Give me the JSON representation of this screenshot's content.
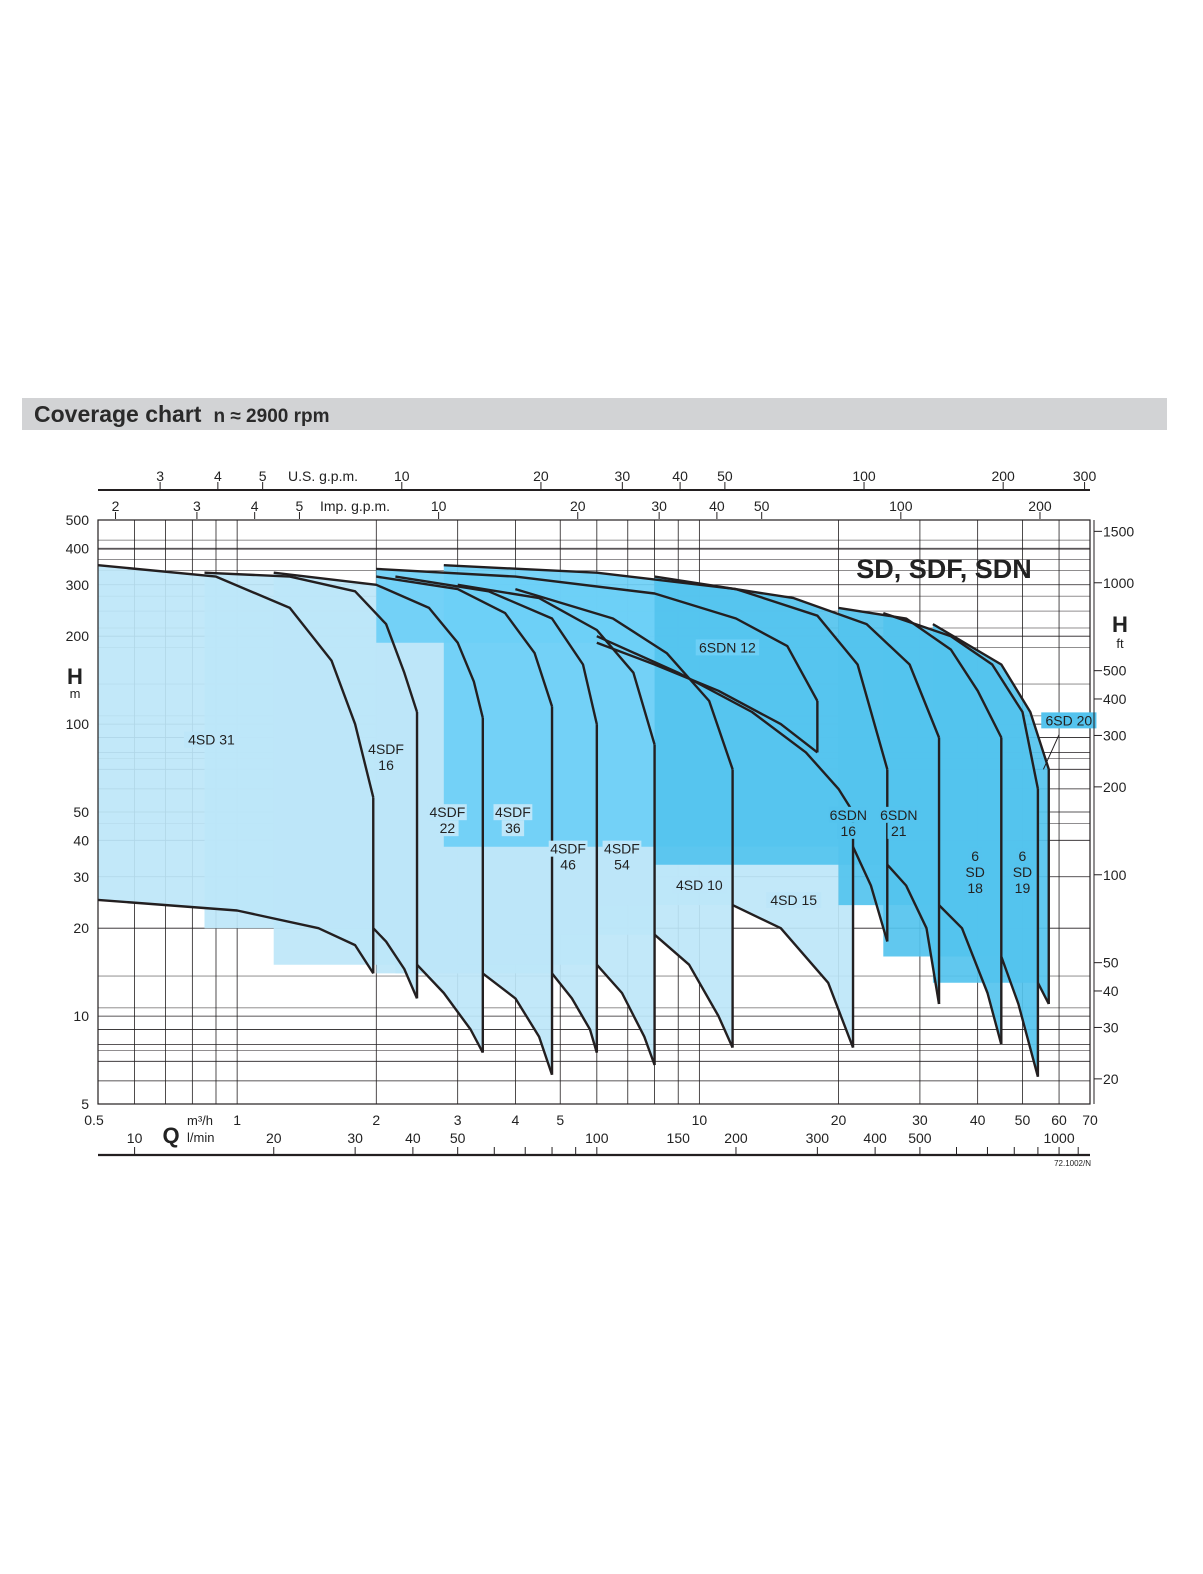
{
  "page": {
    "title": "Coverage chart",
    "subtitle": "n ≈ 2900 rpm"
  },
  "chart_data": {
    "type": "area",
    "title": "SD, SDF, SDN",
    "x_axis": {
      "symbol": "Q",
      "unit_primary": "m³/h",
      "unit_secondary": "l/min",
      "scale": "log",
      "range_m3h": [
        0.5,
        70
      ],
      "ticks_m3h": [
        "0.5",
        "1",
        "2",
        "3",
        "4",
        "5",
        "10",
        "20",
        "30",
        "40",
        "50",
        "60",
        "70"
      ],
      "ticks_lmin": [
        "10",
        "20",
        "30",
        "40",
        "50",
        "100",
        "150",
        "200",
        "300",
        "400",
        "500",
        "1000"
      ],
      "ticks_usgpm": [
        "3",
        "4",
        "5",
        "10",
        "20",
        "30",
        "40",
        "50",
        "100",
        "200",
        "300"
      ],
      "usgpm_label": "U.S. g.p.m.",
      "ticks_impgpm": [
        "2",
        "3",
        "4",
        "5",
        "10",
        "20",
        "30",
        "40",
        "50",
        "100",
        "200"
      ],
      "impgpm_label": "Imp. g.p.m."
    },
    "y_axis": {
      "symbol": "H",
      "unit_left": "m",
      "unit_right": "ft",
      "scale": "log",
      "range_m": [
        5,
        500
      ],
      "ticks_m": [
        "5",
        "10",
        "20",
        "30",
        "40",
        "50",
        "100",
        "200",
        "300",
        "400",
        "500"
      ],
      "ticks_ft": [
        "20",
        "30",
        "40",
        "50",
        "100",
        "200",
        "300",
        "400",
        "500",
        "1000",
        "1500"
      ]
    },
    "grid": true,
    "colors": {
      "sd_fill": "#bde6f9",
      "sdn_fill": "#6dcff6",
      "sd6_fill": "#54c3ee",
      "curve": "#231f20"
    },
    "series": [
      {
        "name": "4SD 31",
        "label_lines": [
          "4SD 31"
        ],
        "qmin": 0.5,
        "qmax": 1.97,
        "top": [
          [
            0.5,
            350
          ],
          [
            0.9,
            320
          ],
          [
            1.3,
            250
          ],
          [
            1.6,
            165
          ],
          [
            1.8,
            100
          ],
          [
            1.97,
            56
          ]
        ],
        "bottom": [
          [
            0.5,
            25
          ],
          [
            1.0,
            23
          ],
          [
            1.5,
            20
          ],
          [
            1.8,
            17.5
          ],
          [
            1.97,
            14
          ]
        ]
      },
      {
        "name": "4SDF 16",
        "label_lines": [
          "4SDF",
          "16"
        ],
        "qmin": 0.85,
        "qmax": 2.45,
        "top": [
          [
            0.85,
            330
          ],
          [
            1.3,
            320
          ],
          [
            1.8,
            285
          ],
          [
            2.1,
            220
          ],
          [
            2.3,
            150
          ],
          [
            2.45,
            110
          ]
        ],
        "bottom": [
          [
            1.97,
            20
          ],
          [
            2.1,
            18
          ],
          [
            2.3,
            14.5
          ],
          [
            2.45,
            11.5
          ]
        ]
      },
      {
        "name": "4SDF 22",
        "label_lines": [
          "4SDF",
          "22"
        ],
        "qmin": 2.45,
        "qmax": 3.4,
        "top": [
          [
            1.2,
            330
          ],
          [
            2.0,
            300
          ],
          [
            2.6,
            250
          ],
          [
            3.0,
            190
          ],
          [
            3.25,
            140
          ],
          [
            3.4,
            105
          ]
        ],
        "bottom": [
          [
            2.45,
            15
          ],
          [
            2.8,
            12
          ],
          [
            3.2,
            9
          ],
          [
            3.4,
            7.5
          ]
        ]
      },
      {
        "name": "4SDF 36",
        "label_lines": [
          "4SDF",
          "36"
        ],
        "qmin": 3.4,
        "qmax": 4.8,
        "top": [
          [
            2.0,
            320
          ],
          [
            3.0,
            290
          ],
          [
            3.8,
            240
          ],
          [
            4.4,
            175
          ],
          [
            4.8,
            115
          ]
        ],
        "bottom": [
          [
            3.4,
            14
          ],
          [
            4.0,
            11.5
          ],
          [
            4.5,
            8.5
          ],
          [
            4.8,
            6.3
          ]
        ]
      },
      {
        "name": "4SDF 46",
        "label_lines": [
          "4SDF",
          "46"
        ],
        "qmin": 4.8,
        "qmax": 6.0,
        "top": [
          [
            2.2,
            320
          ],
          [
            3.5,
            285
          ],
          [
            4.8,
            230
          ],
          [
            5.6,
            160
          ],
          [
            6.0,
            100
          ]
        ],
        "bottom": [
          [
            4.8,
            14
          ],
          [
            5.3,
            11.5
          ],
          [
            5.8,
            9
          ],
          [
            6.0,
            7.5
          ]
        ]
      },
      {
        "name": "4SDF 54",
        "label_lines": [
          "4SDF",
          "54"
        ],
        "qmin": 6.0,
        "qmax": 8.0,
        "top": [
          [
            3.0,
            300
          ],
          [
            4.5,
            270
          ],
          [
            6.0,
            210
          ],
          [
            7.2,
            150
          ],
          [
            8.0,
            85
          ]
        ],
        "bottom": [
          [
            6.0,
            15
          ],
          [
            6.8,
            12
          ],
          [
            7.6,
            8.5
          ],
          [
            8.0,
            6.8
          ]
        ]
      },
      {
        "name": "4SD 10",
        "label_lines": [
          "4SD 10"
        ],
        "qmin": 8.0,
        "qmax": 11.8,
        "top": [
          [
            4.0,
            290
          ],
          [
            6.5,
            230
          ],
          [
            8.5,
            175
          ],
          [
            10.5,
            120
          ],
          [
            11.8,
            70
          ]
        ],
        "bottom": [
          [
            8.0,
            19
          ],
          [
            9.5,
            15
          ],
          [
            11.0,
            10
          ],
          [
            11.8,
            7.8
          ]
        ]
      },
      {
        "name": "4SD 15",
        "label_lines": [
          "4SD 15"
        ],
        "qmin": 11.8,
        "qmax": 21.5,
        "top": [
          [
            6.0,
            200
          ],
          [
            9.0,
            150
          ],
          [
            13.0,
            110
          ],
          [
            17.0,
            80
          ],
          [
            20.0,
            60
          ],
          [
            21.5,
            50
          ]
        ],
        "bottom": [
          [
            11.8,
            24
          ],
          [
            15.0,
            20
          ],
          [
            19.0,
            13
          ],
          [
            21.5,
            7.8
          ]
        ]
      },
      {
        "name": "6SDN 12",
        "label_lines": [
          "6SDN 12"
        ],
        "qmin": 2.0,
        "qmax": 18.0,
        "top": [
          [
            2.0,
            340
          ],
          [
            4.0,
            320
          ],
          [
            8.0,
            280
          ],
          [
            12.0,
            230
          ],
          [
            15.5,
            185
          ],
          [
            18.0,
            120
          ]
        ],
        "bottom": [
          [
            6.0,
            190
          ],
          [
            8.0,
            160
          ],
          [
            11.0,
            130
          ],
          [
            15.0,
            100
          ],
          [
            18.0,
            80
          ]
        ]
      },
      {
        "name": "6SDN 16",
        "label_lines": [
          "6SDN",
          "16"
        ],
        "qmin": 21.5,
        "qmax": 25.5,
        "top": [
          [
            2.8,
            350
          ],
          [
            6.0,
            330
          ],
          [
            12.0,
            290
          ],
          [
            18.0,
            235
          ],
          [
            22.0,
            160
          ],
          [
            25.5,
            70
          ]
        ],
        "bottom": [
          [
            21.5,
            38
          ],
          [
            23.5,
            28
          ],
          [
            25.5,
            18
          ]
        ]
      },
      {
        "name": "6SDN 21",
        "label_lines": [
          "6SDN",
          "21"
        ],
        "qmin": 25.5,
        "qmax": 33.0,
        "top": [
          [
            8.0,
            320
          ],
          [
            16.0,
            270
          ],
          [
            23.0,
            220
          ],
          [
            28.5,
            160
          ],
          [
            33.0,
            90
          ]
        ],
        "bottom": [
          [
            25.5,
            33
          ],
          [
            28.0,
            28
          ],
          [
            31.0,
            20
          ],
          [
            33.0,
            11
          ]
        ]
      },
      {
        "name": "6 SD 18",
        "label_lines": [
          "6",
          "SD",
          "18"
        ],
        "qmin": 33.0,
        "qmax": 45.0,
        "top": [
          [
            20.0,
            250
          ],
          [
            28.0,
            230
          ],
          [
            35.0,
            180
          ],
          [
            40.0,
            130
          ],
          [
            45.0,
            90
          ]
        ],
        "bottom": [
          [
            33.0,
            24
          ],
          [
            37.0,
            20
          ],
          [
            42.0,
            12
          ],
          [
            45.0,
            8
          ]
        ]
      },
      {
        "name": "6 SD 19",
        "label_lines": [
          "6",
          "SD",
          "19"
        ],
        "qmin": 45.0,
        "qmax": 54.0,
        "top": [
          [
            25.0,
            240
          ],
          [
            35.0,
            200
          ],
          [
            43.0,
            160
          ],
          [
            50.0,
            110
          ],
          [
            54.0,
            60
          ]
        ],
        "bottom": [
          [
            45.0,
            16
          ],
          [
            49.0,
            11
          ],
          [
            54.0,
            6.2
          ]
        ]
      },
      {
        "name": "6SD 20",
        "label_lines": [
          "6SD 20"
        ],
        "qmin": 54.0,
        "qmax": 57.0,
        "top": [
          [
            32.0,
            220
          ],
          [
            45.0,
            160
          ],
          [
            52.0,
            110
          ],
          [
            57.0,
            70
          ]
        ],
        "bottom": [
          [
            54.0,
            13
          ],
          [
            57.0,
            11
          ]
        ]
      }
    ]
  },
  "footer": {
    "code": "72.1002/N"
  }
}
